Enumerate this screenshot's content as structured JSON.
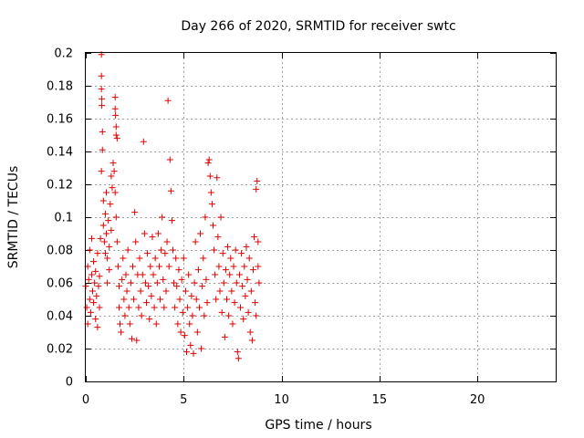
{
  "chart_data": {
    "type": "scatter",
    "title": "Day 266 of 2020, SRMTID for receiver swtc",
    "xlabel": "GPS time / hours",
    "ylabel": "SRMTID / TECUs",
    "xlim": [
      0,
      24
    ],
    "ylim": [
      0,
      0.2
    ],
    "x_ticks": [
      0,
      5,
      10,
      15,
      20
    ],
    "x_tick_labels": [
      "0",
      "5",
      "10",
      "15",
      "20"
    ],
    "y_ticks": [
      0,
      0.02,
      0.04,
      0.06,
      0.08,
      0.1,
      0.12,
      0.14,
      0.16,
      0.18,
      0.2
    ],
    "y_tick_labels": [
      "0",
      "0.02",
      "0.04",
      "0.06",
      "0.08",
      "0.1",
      "0.12",
      "0.14",
      "0.16",
      "0.18",
      "0.2"
    ],
    "grid": true,
    "marker": "+",
    "series": [
      {
        "name": "SRMTID",
        "color": "#e00000",
        "points": [
          [
            0.0,
            0.058
          ],
          [
            0.05,
            0.045
          ],
          [
            0.1,
            0.07
          ],
          [
            0.1,
            0.035
          ],
          [
            0.15,
            0.062
          ],
          [
            0.2,
            0.05
          ],
          [
            0.2,
            0.08
          ],
          [
            0.25,
            0.042
          ],
          [
            0.3,
            0.065
          ],
          [
            0.3,
            0.087
          ],
          [
            0.35,
            0.055
          ],
          [
            0.4,
            0.073
          ],
          [
            0.4,
            0.048
          ],
          [
            0.45,
            0.06
          ],
          [
            0.5,
            0.038
          ],
          [
            0.5,
            0.067
          ],
          [
            0.55,
            0.052
          ],
          [
            0.6,
            0.078
          ],
          [
            0.6,
            0.033
          ],
          [
            0.65,
            0.058
          ],
          [
            0.7,
            0.045
          ],
          [
            0.7,
            0.064
          ],
          [
            0.75,
            0.087
          ],
          [
            0.8,
            0.199
          ],
          [
            0.8,
            0.186
          ],
          [
            0.8,
            0.178
          ],
          [
            0.82,
            0.172
          ],
          [
            0.82,
            0.168
          ],
          [
            0.85,
            0.152
          ],
          [
            0.85,
            0.141
          ],
          [
            0.8,
            0.128
          ],
          [
            0.9,
            0.11
          ],
          [
            0.9,
            0.095
          ],
          [
            0.95,
            0.085
          ],
          [
            1.0,
            0.078
          ],
          [
            1.0,
            0.102
          ],
          [
            1.05,
            0.115
          ],
          [
            1.05,
            0.09
          ],
          [
            1.1,
            0.075
          ],
          [
            1.1,
            0.06
          ],
          [
            1.15,
            0.098
          ],
          [
            1.2,
            0.082
          ],
          [
            1.2,
            0.068
          ],
          [
            1.25,
            0.108
          ],
          [
            1.3,
            0.092
          ],
          [
            1.3,
            0.125
          ],
          [
            1.35,
            0.118
          ],
          [
            1.4,
            0.133
          ],
          [
            1.45,
            0.128
          ],
          [
            1.5,
            0.173
          ],
          [
            1.5,
            0.166
          ],
          [
            1.52,
            0.162
          ],
          [
            1.55,
            0.155
          ],
          [
            1.55,
            0.15
          ],
          [
            1.6,
            0.148
          ],
          [
            1.5,
            0.115
          ],
          [
            1.55,
            0.1
          ],
          [
            1.6,
            0.085
          ],
          [
            1.65,
            0.07
          ],
          [
            1.7,
            0.058
          ],
          [
            1.7,
            0.045
          ],
          [
            1.75,
            0.035
          ],
          [
            1.8,
            0.03
          ],
          [
            1.85,
            0.062
          ],
          [
            1.9,
            0.075
          ],
          [
            1.95,
            0.05
          ],
          [
            2.0,
            0.04
          ],
          [
            2.05,
            0.065
          ],
          [
            2.1,
            0.055
          ],
          [
            2.15,
            0.08
          ],
          [
            2.2,
            0.045
          ],
          [
            2.25,
            0.035
          ],
          [
            2.3,
            0.06
          ],
          [
            2.35,
            0.026
          ],
          [
            2.4,
            0.07
          ],
          [
            2.45,
            0.05
          ],
          [
            2.5,
            0.103
          ],
          [
            2.55,
            0.085
          ],
          [
            2.6,
            0.025
          ],
          [
            2.65,
            0.065
          ],
          [
            2.7,
            0.045
          ],
          [
            2.75,
            0.075
          ],
          [
            2.8,
            0.055
          ],
          [
            2.85,
            0.04
          ],
          [
            2.9,
            0.065
          ],
          [
            2.95,
            0.146
          ],
          [
            3.0,
            0.09
          ],
          [
            3.05,
            0.06
          ],
          [
            3.1,
            0.048
          ],
          [
            3.15,
            0.078
          ],
          [
            3.2,
            0.058
          ],
          [
            3.25,
            0.038
          ],
          [
            3.3,
            0.07
          ],
          [
            3.35,
            0.052
          ],
          [
            3.4,
            0.088
          ],
          [
            3.45,
            0.065
          ],
          [
            3.5,
            0.045
          ],
          [
            3.55,
            0.075
          ],
          [
            3.6,
            0.035
          ],
          [
            3.65,
            0.06
          ],
          [
            3.7,
            0.09
          ],
          [
            3.75,
            0.07
          ],
          [
            3.8,
            0.05
          ],
          [
            3.85,
            0.08
          ],
          [
            3.9,
            0.1
          ],
          [
            3.95,
            0.062
          ],
          [
            4.0,
            0.045
          ],
          [
            4.05,
            0.078
          ],
          [
            4.1,
            0.055
          ],
          [
            4.15,
            0.085
          ],
          [
            4.2,
            0.171
          ],
          [
            4.25,
            0.07
          ],
          [
            4.3,
            0.135
          ],
          [
            4.35,
            0.116
          ],
          [
            4.4,
            0.098
          ],
          [
            4.45,
            0.08
          ],
          [
            4.5,
            0.06
          ],
          [
            4.55,
            0.045
          ],
          [
            4.6,
            0.075
          ],
          [
            4.65,
            0.058
          ],
          [
            4.7,
            0.035
          ],
          [
            4.75,
            0.068
          ],
          [
            4.8,
            0.05
          ],
          [
            4.85,
            0.03
          ],
          [
            4.9,
            0.062
          ],
          [
            4.95,
            0.042
          ],
          [
            5.0,
            0.075
          ],
          [
            5.05,
            0.028
          ],
          [
            5.1,
            0.055
          ],
          [
            5.15,
            0.018
          ],
          [
            5.2,
            0.045
          ],
          [
            5.25,
            0.065
          ],
          [
            5.3,
            0.035
          ],
          [
            5.35,
            0.022
          ],
          [
            5.4,
            0.052
          ],
          [
            5.45,
            0.04
          ],
          [
            5.5,
            0.017
          ],
          [
            5.55,
            0.06
          ],
          [
            5.6,
            0.085
          ],
          [
            5.65,
            0.05
          ],
          [
            5.7,
            0.03
          ],
          [
            5.75,
            0.068
          ],
          [
            5.8,
            0.045
          ],
          [
            5.85,
            0.09
          ],
          [
            5.9,
            0.02
          ],
          [
            5.95,
            0.058
          ],
          [
            6.0,
            0.075
          ],
          [
            6.05,
            0.04
          ],
          [
            6.1,
            0.1
          ],
          [
            6.15,
            0.062
          ],
          [
            6.2,
            0.048
          ],
          [
            6.25,
            0.133
          ],
          [
            6.3,
            0.135
          ],
          [
            6.35,
            0.125
          ],
          [
            6.4,
            0.115
          ],
          [
            6.45,
            0.108
          ],
          [
            6.5,
            0.095
          ],
          [
            6.55,
            0.08
          ],
          [
            6.6,
            0.065
          ],
          [
            6.65,
            0.05
          ],
          [
            6.7,
            0.124
          ],
          [
            6.75,
            0.088
          ],
          [
            6.8,
            0.07
          ],
          [
            6.85,
            0.055
          ],
          [
            6.9,
            0.1
          ],
          [
            6.95,
            0.042
          ],
          [
            7.0,
            0.078
          ],
          [
            7.05,
            0.06
          ],
          [
            7.1,
            0.027
          ],
          [
            7.15,
            0.068
          ],
          [
            7.2,
            0.05
          ],
          [
            7.25,
            0.082
          ],
          [
            7.3,
            0.04
          ],
          [
            7.35,
            0.065
          ],
          [
            7.4,
            0.075
          ],
          [
            7.45,
            0.055
          ],
          [
            7.5,
            0.035
          ],
          [
            7.55,
            0.07
          ],
          [
            7.6,
            0.048
          ],
          [
            7.65,
            0.08
          ],
          [
            7.7,
            0.06
          ],
          [
            7.75,
            0.018
          ],
          [
            7.8,
            0.014
          ],
          [
            7.85,
            0.065
          ],
          [
            7.9,
            0.045
          ],
          [
            7.95,
            0.078
          ],
          [
            8.0,
            0.058
          ],
          [
            8.05,
            0.038
          ],
          [
            8.1,
            0.07
          ],
          [
            8.15,
            0.052
          ],
          [
            8.2,
            0.082
          ],
          [
            8.25,
            0.062
          ],
          [
            8.3,
            0.042
          ],
          [
            8.35,
            0.075
          ],
          [
            8.4,
            0.03
          ],
          [
            8.45,
            0.055
          ],
          [
            8.5,
            0.025
          ],
          [
            8.55,
            0.068
          ],
          [
            8.6,
            0.088
          ],
          [
            8.65,
            0.048
          ],
          [
            8.7,
            0.117
          ],
          [
            8.75,
            0.122
          ],
          [
            8.8,
            0.085
          ],
          [
            8.85,
            0.06
          ],
          [
            8.7,
            0.04
          ],
          [
            8.8,
            0.07
          ]
        ]
      }
    ]
  }
}
